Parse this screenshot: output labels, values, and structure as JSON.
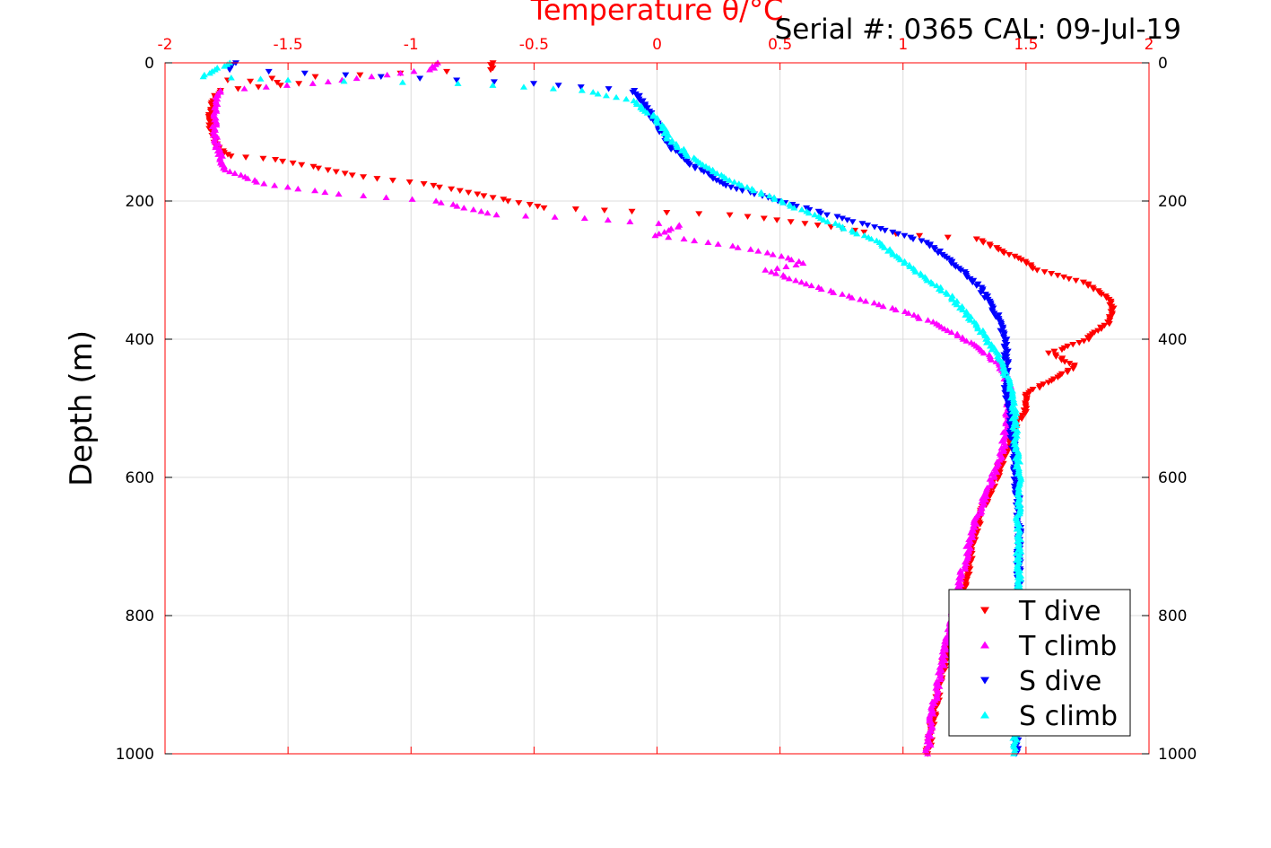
{
  "chart_data": {
    "type": "scatter",
    "title": "Temperature θ/°C",
    "annotation": "Serial #: 0365  CAL: 09-Jul-19",
    "xlabel": "Temperature θ/°C",
    "ylabel": "Depth (m)",
    "xlim": [
      -2,
      2
    ],
    "ylim": [
      0,
      1000
    ],
    "y_reversed": true,
    "x_axis_position": "top",
    "x_ticks": [
      "-2",
      "-1.5",
      "-1",
      "-0.5",
      "0",
      "0.5",
      "1",
      "1.5",
      "2"
    ],
    "y_ticks": [
      "0",
      "200",
      "400",
      "600",
      "800",
      "1000"
    ],
    "grid": true,
    "legend_position": "bottom-right",
    "series": [
      {
        "name": "T dive",
        "marker": "triangle-down",
        "color": "#ff0000",
        "points": [
          [
            -0.67,
            0
          ],
          [
            -0.68,
            10
          ],
          [
            -1.75,
            25
          ],
          [
            -1.45,
            30
          ],
          [
            -1.78,
            40
          ],
          [
            -1.81,
            60
          ],
          [
            -1.82,
            90
          ],
          [
            -1.8,
            110
          ],
          [
            -1.78,
            125
          ],
          [
            -1.73,
            135
          ],
          [
            -1.55,
            140
          ],
          [
            -1.4,
            150
          ],
          [
            -1.2,
            165
          ],
          [
            -0.95,
            175
          ],
          [
            -0.8,
            185
          ],
          [
            -0.6,
            200
          ],
          [
            -0.45,
            210
          ],
          [
            -0.1,
            215
          ],
          [
            0.3,
            220
          ],
          [
            0.55,
            230
          ],
          [
            0.85,
            245
          ],
          [
            1.3,
            255
          ],
          [
            1.45,
            280
          ],
          [
            1.55,
            300
          ],
          [
            1.75,
            320
          ],
          [
            1.85,
            345
          ],
          [
            1.84,
            375
          ],
          [
            1.75,
            400
          ],
          [
            1.6,
            420
          ],
          [
            1.7,
            440
          ],
          [
            1.6,
            460
          ],
          [
            1.5,
            480
          ],
          [
            1.5,
            500
          ],
          [
            1.45,
            530
          ],
          [
            1.42,
            560
          ],
          [
            1.38,
            600
          ],
          [
            1.32,
            650
          ],
          [
            1.28,
            700
          ],
          [
            1.24,
            780
          ],
          [
            1.18,
            850
          ],
          [
            1.14,
            920
          ],
          [
            1.1,
            1000
          ]
        ]
      },
      {
        "name": "T climb",
        "marker": "triangle-up",
        "color": "#ff00ff",
        "points": [
          [
            -0.9,
            0
          ],
          [
            -0.92,
            10
          ],
          [
            -1.4,
            30
          ],
          [
            -1.78,
            40
          ],
          [
            -1.8,
            70
          ],
          [
            -1.8,
            100
          ],
          [
            -1.78,
            130
          ],
          [
            -1.76,
            155
          ],
          [
            -1.6,
            175
          ],
          [
            -1.3,
            190
          ],
          [
            -0.9,
            200
          ],
          [
            -0.65,
            220
          ],
          [
            -0.3,
            225
          ],
          [
            0.1,
            235
          ],
          [
            0.0,
            250
          ],
          [
            0.3,
            265
          ],
          [
            0.45,
            275
          ],
          [
            0.6,
            290
          ],
          [
            0.45,
            300
          ],
          [
            0.6,
            320
          ],
          [
            0.8,
            340
          ],
          [
            1.0,
            360
          ],
          [
            1.15,
            380
          ],
          [
            1.3,
            410
          ],
          [
            1.4,
            440
          ],
          [
            1.43,
            470
          ],
          [
            1.42,
            520
          ],
          [
            1.4,
            570
          ],
          [
            1.34,
            620
          ],
          [
            1.28,
            680
          ],
          [
            1.24,
            740
          ],
          [
            1.2,
            800
          ],
          [
            1.16,
            870
          ],
          [
            1.12,
            940
          ],
          [
            1.1,
            1000
          ]
        ]
      },
      {
        "name": "S dive",
        "marker": "triangle-down",
        "color": "#0000ff",
        "points": [
          [
            -1.72,
            0
          ],
          [
            -1.74,
            10
          ],
          [
            -0.5,
            30
          ],
          [
            -0.1,
            40
          ],
          [
            -0.05,
            60
          ],
          [
            0.0,
            90
          ],
          [
            0.05,
            120
          ],
          [
            0.15,
            150
          ],
          [
            0.3,
            180
          ],
          [
            0.5,
            200
          ],
          [
            0.7,
            220
          ],
          [
            0.9,
            240
          ],
          [
            1.1,
            260
          ],
          [
            1.2,
            290
          ],
          [
            1.3,
            320
          ],
          [
            1.36,
            350
          ],
          [
            1.4,
            380
          ],
          [
            1.42,
            410
          ],
          [
            1.42,
            440
          ],
          [
            1.42,
            480
          ],
          [
            1.44,
            520
          ],
          [
            1.45,
            560
          ],
          [
            1.46,
            600
          ],
          [
            1.47,
            650
          ],
          [
            1.47,
            700
          ],
          [
            1.47,
            760
          ],
          [
            1.46,
            820
          ],
          [
            1.46,
            880
          ],
          [
            1.46,
            940
          ],
          [
            1.46,
            1000
          ]
        ]
      },
      {
        "name": "S climb",
        "marker": "triangle-up",
        "color": "#00ffff",
        "points": [
          [
            -1.74,
            0
          ],
          [
            -1.85,
            20
          ],
          [
            -1.5,
            25
          ],
          [
            -0.8,
            30
          ],
          [
            -0.3,
            40
          ],
          [
            -0.1,
            55
          ],
          [
            0.0,
            80
          ],
          [
            0.05,
            110
          ],
          [
            0.15,
            140
          ],
          [
            0.3,
            170
          ],
          [
            0.5,
            200
          ],
          [
            0.7,
            230
          ],
          [
            0.9,
            260
          ],
          [
            1.05,
            300
          ],
          [
            1.2,
            340
          ],
          [
            1.3,
            380
          ],
          [
            1.38,
            420
          ],
          [
            1.43,
            460
          ],
          [
            1.45,
            500
          ],
          [
            1.46,
            550
          ],
          [
            1.47,
            600
          ],
          [
            1.47,
            650
          ],
          [
            1.47,
            700
          ],
          [
            1.47,
            760
          ],
          [
            1.46,
            820
          ],
          [
            1.46,
            880
          ],
          [
            1.46,
            940
          ],
          [
            1.45,
            1000
          ]
        ]
      }
    ]
  }
}
